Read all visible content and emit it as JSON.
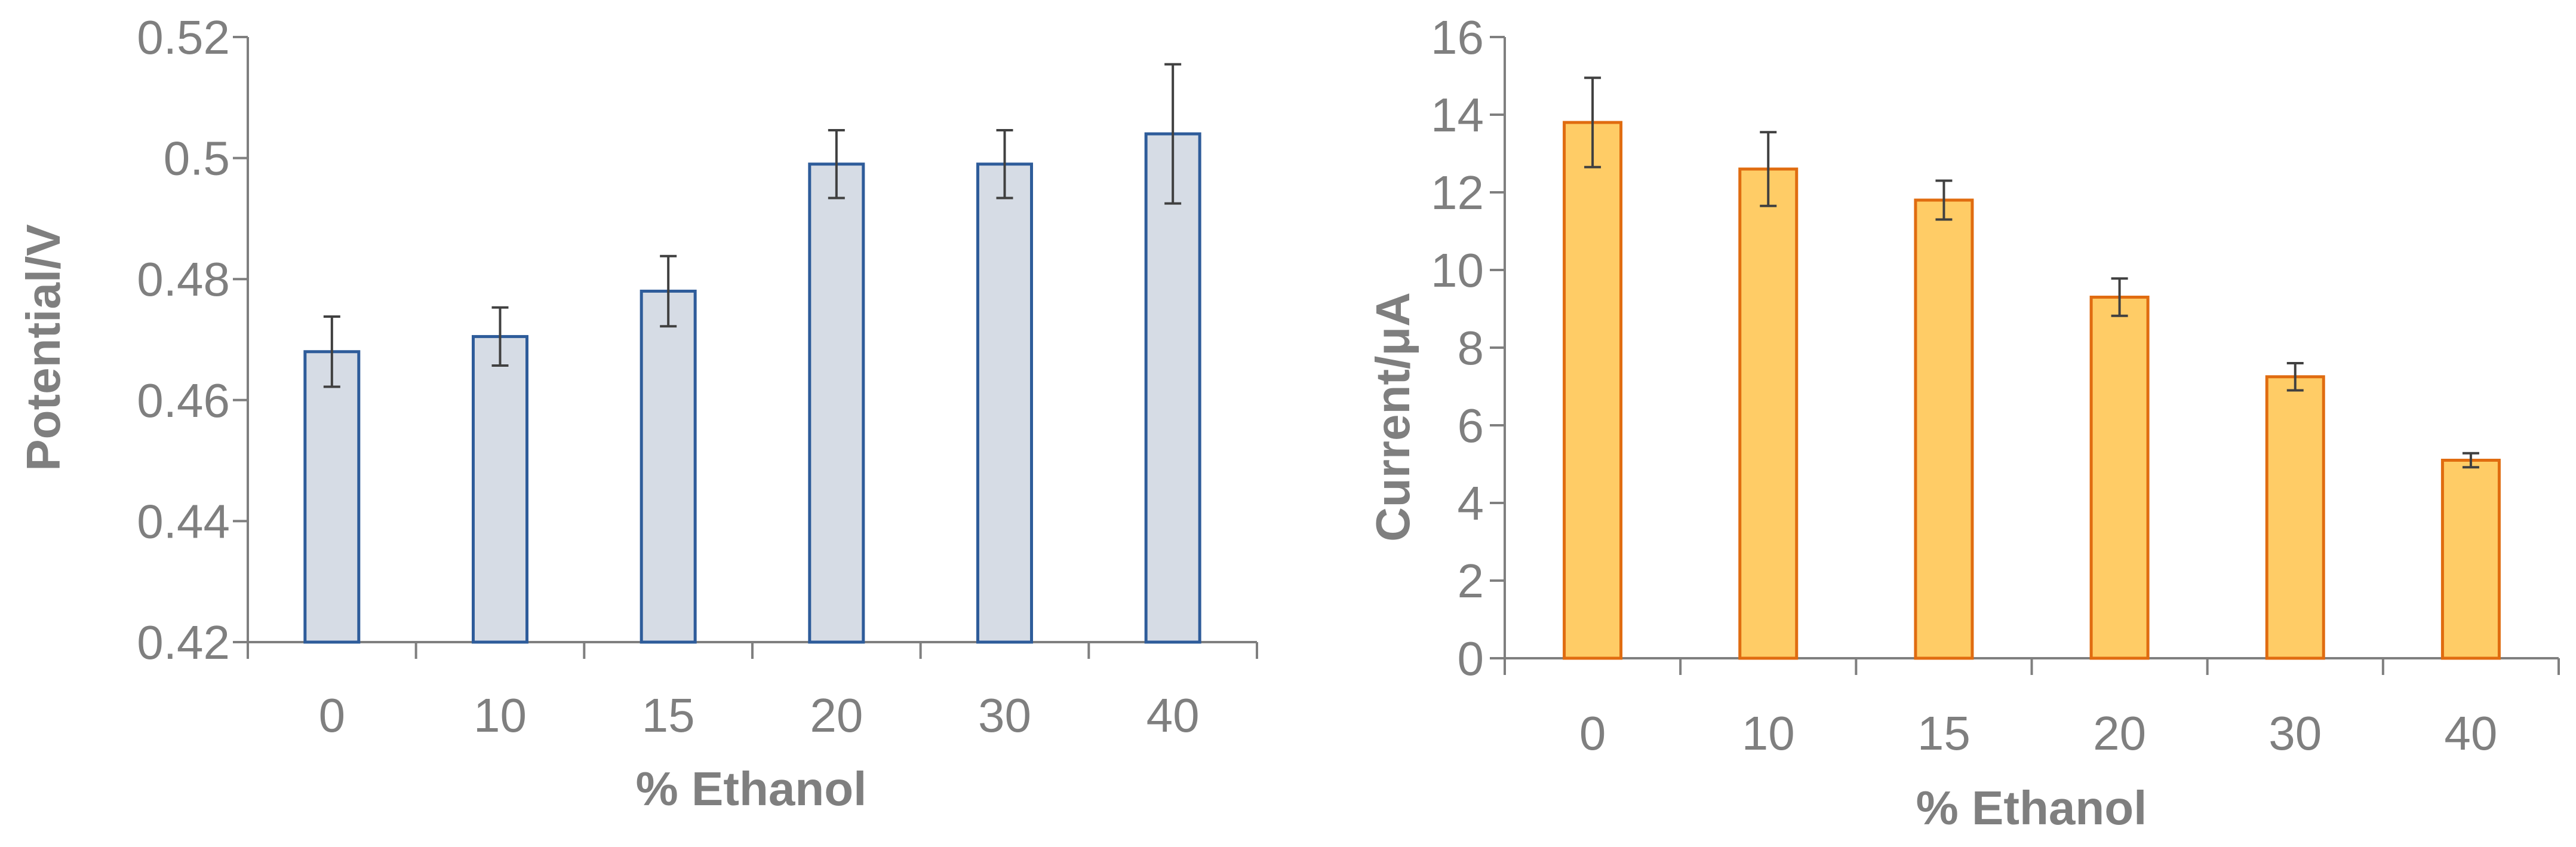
{
  "chart_data": [
    {
      "type": "bar",
      "categories": [
        "0",
        "10",
        "15",
        "20",
        "30",
        "40"
      ],
      "values": [
        0.468,
        0.4705,
        0.478,
        0.499,
        0.499,
        0.504
      ],
      "errors": [
        0.0058,
        0.0048,
        0.0058,
        0.0056,
        0.0056,
        0.0115
      ],
      "xlabel": "% Ethanol",
      "ylabel": "Potential/V",
      "ylim": [
        0.42,
        0.52
      ],
      "yticks": [
        "0.42",
        "0.44",
        "0.46",
        "0.48",
        "0.5",
        "0.52"
      ],
      "ytick_values": [
        0.42,
        0.44,
        0.46,
        0.48,
        0.5,
        0.52
      ],
      "bar_fill": "#d6dce5",
      "bar_stroke": "#2e5c9a",
      "grid": false
    },
    {
      "type": "bar",
      "categories": [
        "0",
        "10",
        "15",
        "20",
        "30",
        "40"
      ],
      "values": [
        13.8,
        12.6,
        11.8,
        9.3,
        7.25,
        5.1
      ],
      "errors": [
        1.15,
        0.95,
        0.5,
        0.48,
        0.35,
        0.18
      ],
      "xlabel": "% Ethanol",
      "ylabel": "Current/μA",
      "ylim": [
        0,
        16
      ],
      "yticks": [
        "0",
        "2",
        "4",
        "6",
        "8",
        "10",
        "12",
        "14",
        "16"
      ],
      "ytick_values": [
        0,
        2,
        4,
        6,
        8,
        10,
        12,
        14,
        16
      ],
      "bar_fill": "#ffcc66",
      "bar_stroke": "#e06c10",
      "grid": false
    }
  ]
}
